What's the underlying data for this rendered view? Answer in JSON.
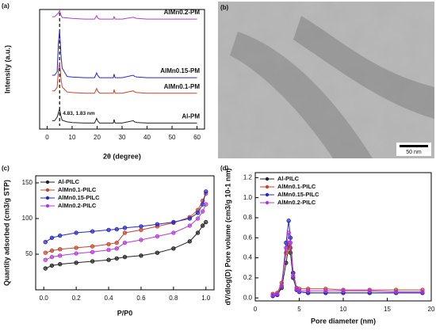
{
  "panel_labels": [
    "(a)",
    "(b)",
    "(c)",
    "(d)"
  ],
  "image": {
    "scale_bar": "50 nm"
  },
  "chart_data": [
    {
      "type": "line",
      "xlabel": "2θ (degree)",
      "ylabel": "Intensity (a.u.)",
      "annotation": "4.83, 1.83 nm",
      "reference_line": 5,
      "xlim": [
        -3,
        63
      ],
      "ylim": [
        0,
        100
      ],
      "xticks": [
        0,
        10,
        20,
        30,
        40,
        50,
        60
      ],
      "legend": "inline",
      "markers": false,
      "x": [
        2,
        3,
        4,
        4.5,
        5,
        5.5,
        6,
        8,
        10,
        15,
        19,
        19.8,
        20.2,
        21,
        25,
        26.5,
        26.8,
        27.2,
        28,
        30,
        34.5,
        35,
        36,
        40,
        45,
        50,
        55,
        60
      ],
      "series": [
        {
          "name": "Al-PM",
          "color": "#222222",
          "values": [
            7,
            7,
            10,
            13.4,
            17,
            11,
            7.4,
            6,
            5.5,
            5,
            5,
            9,
            7,
            5,
            5,
            5,
            8,
            5,
            5,
            5,
            7,
            6,
            5.5,
            5,
            5,
            5,
            5,
            5
          ]
        },
        {
          "name": "AlMn0.1-PM",
          "color": "#c8442c",
          "values": [
            32,
            32,
            35,
            48.2,
            56,
            43,
            35.2,
            31,
            30.5,
            30,
            30,
            34,
            32,
            30,
            30,
            30,
            33,
            30,
            30,
            30,
            32,
            31,
            30.5,
            30,
            30,
            30,
            30,
            30
          ]
        },
        {
          "name": "AlMn0.15-PM",
          "color": "#2626c8",
          "values": [
            45,
            45,
            48,
            71,
            83,
            63,
            51,
            44,
            43.5,
            43,
            43,
            47,
            45,
            43,
            43,
            43,
            46,
            43,
            43,
            43,
            45,
            44,
            43.5,
            43,
            43,
            43,
            43,
            43
          ]
        },
        {
          "name": "AlMn0.2-PM",
          "color": "#b23ad8",
          "values": [
            94,
            94,
            96,
            97,
            99,
            95.5,
            93.4,
            93,
            92.5,
            92,
            92,
            95,
            93,
            92,
            92,
            92,
            94,
            92,
            92,
            92,
            93.5,
            93,
            92.5,
            92,
            92,
            92,
            92,
            92
          ]
        }
      ]
    },
    {
      "type": "line",
      "xlabel": "P/P0",
      "ylabel": "Quantity adsorbed (cm3/g STP)",
      "xlim": [
        -0.05,
        1.05
      ],
      "ylim": [
        0,
        160
      ],
      "xticks": [
        {
          "value": 0,
          "label": "0.0"
        },
        0.2,
        0.4,
        0.6,
        0.8,
        {
          "value": 1,
          "label": "1.0"
        }
      ],
      "yticks": [
        50,
        100,
        150
      ],
      "legend": "upper left",
      "markers": true,
      "x": [
        0.01,
        0.05,
        0.1,
        0.2,
        0.3,
        0.4,
        0.45,
        0.5,
        0.6,
        0.7,
        0.8,
        0.9,
        0.95,
        0.98,
        1.0
      ],
      "series": [
        {
          "name": "Al-PILC",
          "color": "#222222",
          "values": [
            30,
            34,
            36,
            38,
            40,
            42,
            44,
            46,
            48,
            52,
            58,
            68,
            80,
            90,
            95
          ]
        },
        {
          "name": "AlMn0.1-PILC",
          "color": "#c8442c",
          "values": [
            52,
            55,
            57,
            59,
            61,
            64,
            66,
            80,
            84,
            89,
            94,
            102,
            112,
            125,
            135
          ]
        },
        {
          "name": "AlMn0.15-PILC",
          "color": "#2626c8",
          "values": [
            67,
            73,
            76,
            80,
            82,
            84,
            85,
            87,
            89,
            92,
            95,
            100,
            108,
            120,
            138
          ]
        },
        {
          "name": "AlMn0.2-PILC",
          "color": "#b23ad8",
          "values": [
            42,
            46,
            48,
            51,
            53,
            56,
            58,
            66,
            70,
            75,
            80,
            90,
            100,
            110,
            120
          ]
        }
      ]
    },
    {
      "type": "line",
      "xlabel": "Pore diameter (nm)",
      "ylabel": "dV/dlog(D) Pore volume (cm3/g 10-1 nm)",
      "xlim": [
        0,
        20
      ],
      "ylim": [
        -0.03,
        1.25
      ],
      "xticks": [
        0,
        5,
        10,
        15,
        20
      ],
      "yticks": [
        {
          "value": 0,
          "label": "0.0"
        },
        0.2,
        0.4,
        0.6,
        0.8,
        {
          "value": 1,
          "label": "1.0"
        },
        1.2
      ],
      "legend": "upper left",
      "markers": true,
      "x": [
        2,
        2.5,
        3,
        3.5,
        3.8,
        4,
        4.3,
        4.7,
        5,
        6,
        8,
        10,
        13,
        16,
        19
      ],
      "series": [
        {
          "name": "Al-PILC",
          "color": "#222222",
          "values": [
            0.02,
            0.03,
            0.1,
            0.35,
            0.52,
            0.45,
            0.2,
            0.08,
            0.06,
            0.05,
            0.05,
            0.05,
            0.05,
            0.05,
            0.05
          ]
        },
        {
          "name": "AlMn0.1-PILC",
          "color": "#c8442c",
          "values": [
            0.04,
            0.05,
            0.15,
            0.45,
            0.55,
            0.5,
            0.25,
            0.1,
            0.09,
            0.09,
            0.09,
            0.08,
            0.08,
            0.08,
            0.08
          ]
        },
        {
          "name": "AlMn0.15-PILC",
          "color": "#2626c8",
          "values": [
            0.02,
            0.03,
            0.12,
            0.55,
            0.77,
            0.6,
            0.25,
            0.08,
            0.06,
            0.05,
            0.05,
            0.05,
            0.05,
            0.05,
            0.05
          ]
        },
        {
          "name": "AlMn0.2-PILC",
          "color": "#b23ad8",
          "values": [
            0.03,
            0.04,
            0.12,
            0.5,
            0.65,
            0.55,
            0.22,
            0.09,
            0.07,
            0.07,
            0.07,
            0.07,
            0.07,
            0.06,
            0.06
          ]
        }
      ]
    }
  ]
}
